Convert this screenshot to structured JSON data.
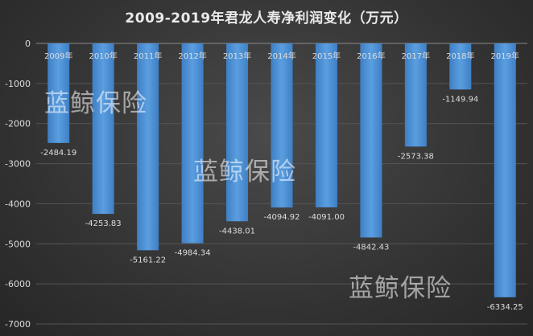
{
  "chart_data": {
    "type": "bar",
    "title": "2009-2019年君龙人寿净利润变化（万元）",
    "xlabel": "",
    "ylabel": "",
    "categories": [
      "2009年",
      "2010年",
      "2011年",
      "2012年",
      "2013年",
      "2014年",
      "2015年",
      "2016年",
      "2017年",
      "2018年",
      "2019年"
    ],
    "values": [
      -2484.19,
      -4253.83,
      -5161.22,
      -4984.34,
      -4438.01,
      -4094.92,
      -4091.0,
      -4842.43,
      -2573.38,
      -1149.94,
      -6334.25
    ],
    "labels": [
      "-2484.19",
      "-4253.83",
      "-5161.22",
      "-4984.34",
      "-4438.01",
      "-4094.92",
      "-4091.00",
      "-4842.43",
      "-2573.38",
      "-1149.94",
      "-6334.25"
    ],
    "ylim": [
      -7000,
      0
    ],
    "yticks": [
      0,
      -1000,
      -2000,
      -3000,
      -4000,
      -5000,
      -6000,
      -7000
    ],
    "grid": true,
    "bar_color": "#4f8fd0"
  },
  "watermark": "蓝鲸保险"
}
